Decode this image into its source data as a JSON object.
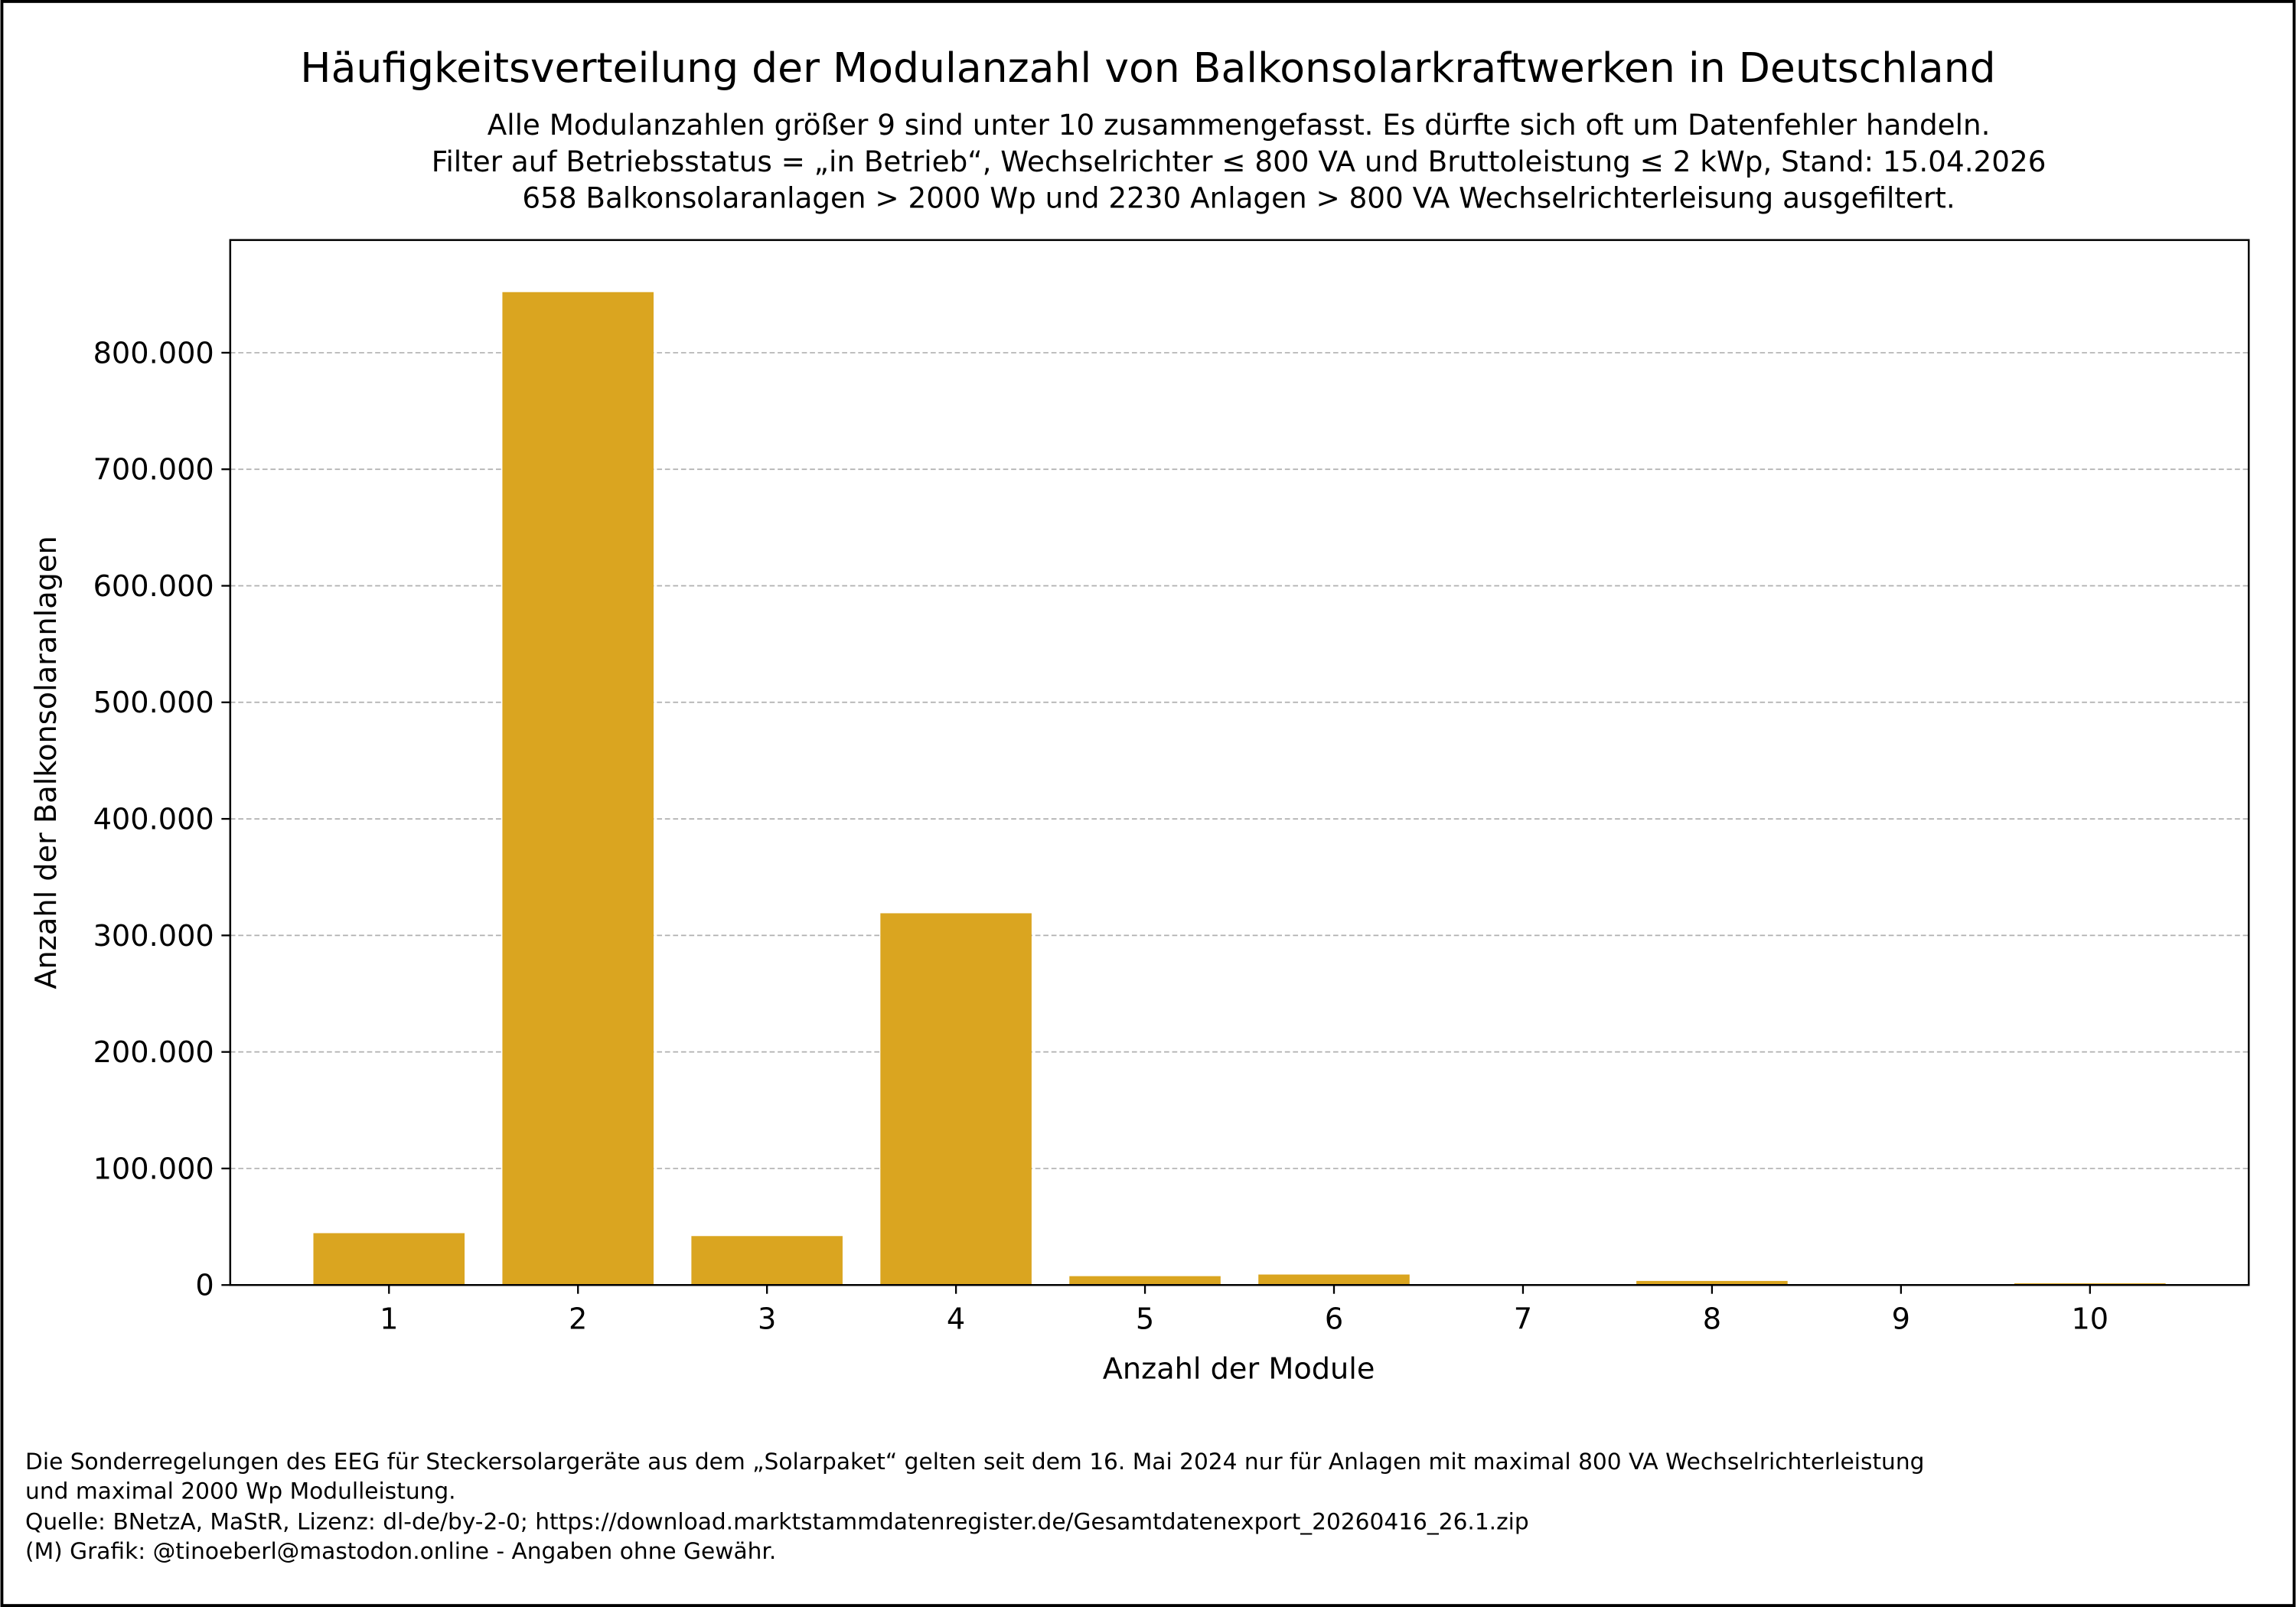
{
  "chart_data": {
    "type": "bar",
    "title": "Häufigkeitsverteilung der Modulanzahl von Balkonsolarkraftwerken in Deutschland",
    "subtitle_lines": [
      "Alle Modulanzahlen größer 9 sind unter 10 zusammengefasst. Es dürfte sich oft um Datenfehler handeln.",
      "Filter auf Betriebsstatus = „in Betrieb“, Wechselrichter ≤ 800 VA und Bruttoleistung ≤ 2 kWp, Stand: 15.04.2026",
      "658 Balkonsolaranlagen > 2000 Wp und 2230 Anlagen > 800 VA Wechselrichterleisung ausgefiltert."
    ],
    "xlabel": "Anzahl der Module",
    "ylabel": "Anzahl der Balkonsolaranlagen",
    "categories": [
      "1",
      "2",
      "3",
      "4",
      "5",
      "6",
      "7",
      "8",
      "9",
      "10"
    ],
    "values": [
      44500,
      852000,
      42000,
      319000,
      7600,
      9000,
      100,
      3500,
      100,
      1500
    ],
    "ylim": [
      0,
      896700
    ],
    "xlim": [
      0.16,
      10.84
    ],
    "yticks": [
      0,
      100000,
      200000,
      300000,
      400000,
      500000,
      600000,
      700000,
      800000
    ],
    "ytick_labels": [
      "0",
      "100.000",
      "200.000",
      "300.000",
      "400.000",
      "500.000",
      "600.000",
      "700.000",
      "800.000"
    ],
    "grid": "y, dashed",
    "bar_color": "#DAA520"
  },
  "footer_lines": [
    "Die Sonderregelungen des EEG für Steckersolargeräte aus dem „Solarpaket“ gelten seit dem 16. Mai 2024 nur für Anlagen mit maximal 800 VA Wechselrichterleistung",
    "und maximal 2000 Wp Modulleistung.",
    "Quelle: BNetzA, MaStR, Lizenz: dl-de/by-2-0; https://download.marktstammdatenregister.de/Gesamtdatenexport_20260416_26.1.zip",
    "(M) Grafik: @tinoeberl@mastodon.online - Angaben ohne Gewähr."
  ]
}
